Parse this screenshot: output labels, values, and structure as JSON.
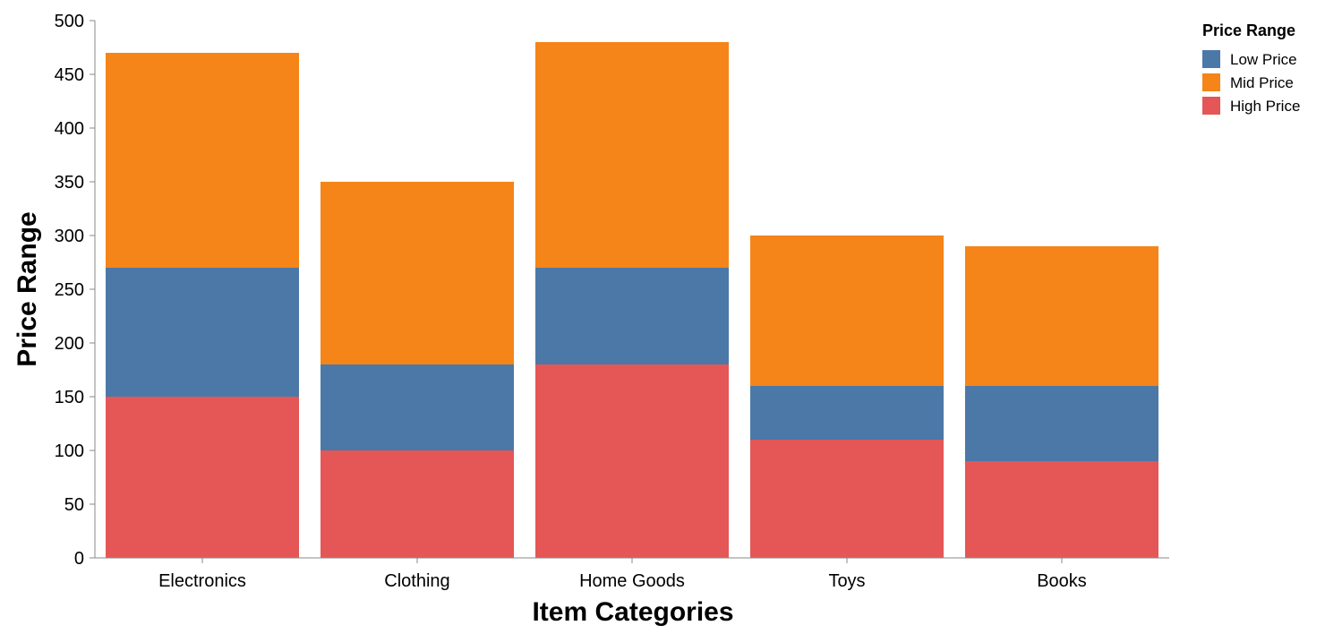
{
  "chart_data": {
    "type": "bar",
    "stacked": true,
    "categories": [
      "Electronics",
      "Clothing",
      "Home Goods",
      "Toys",
      "Books"
    ],
    "series": [
      {
        "name": "High Price",
        "color": "#e45756",
        "values": [
          150,
          100,
          180,
          110,
          90
        ]
      },
      {
        "name": "Low Price",
        "color": "#4c78a8",
        "values": [
          120,
          80,
          90,
          50,
          70
        ]
      },
      {
        "name": "Mid Price",
        "color": "#f58518",
        "values": [
          200,
          170,
          210,
          140,
          130
        ]
      }
    ],
    "xlabel": "Item Categories",
    "ylabel": "Price Range",
    "ylim": [
      0,
      500
    ],
    "yticks": [
      "0",
      "50",
      "100",
      "150",
      "200",
      "250",
      "300",
      "350",
      "400",
      "450",
      "500"
    ],
    "grid": false,
    "legend": {
      "title": "Price Range",
      "position": "top-right",
      "items": [
        {
          "label": "Low Price",
          "color": "#4c78a8"
        },
        {
          "label": "Mid Price",
          "color": "#f58518"
        },
        {
          "label": "High Price",
          "color": "#e45756"
        }
      ]
    }
  }
}
